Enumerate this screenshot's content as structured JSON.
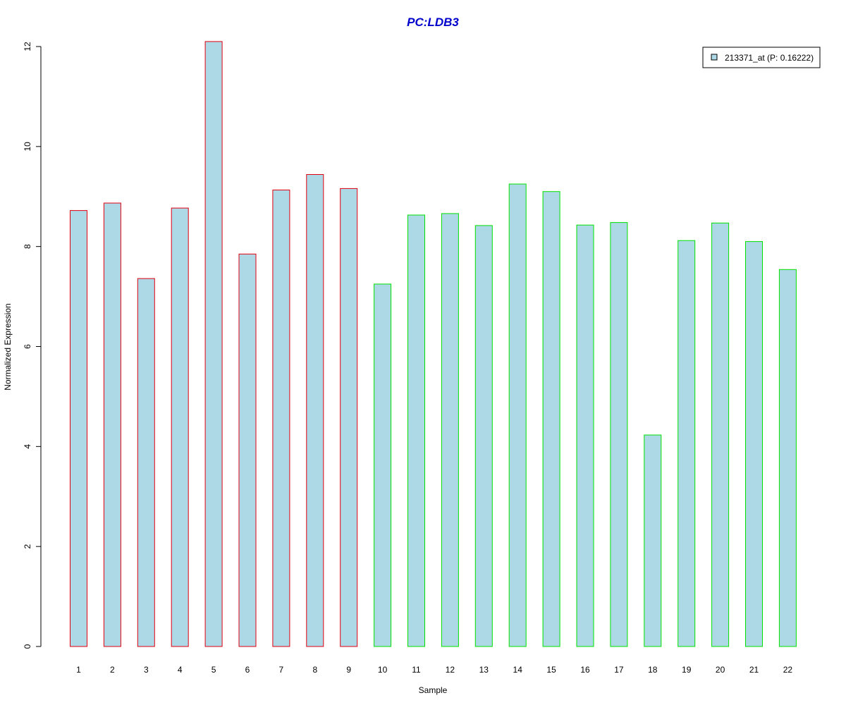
{
  "chart_data": {
    "type": "bar",
    "title": "PC:LDB3",
    "xlabel": "Sample",
    "ylabel": "Normalized Expression",
    "ylim": [
      0,
      12
    ],
    "yticks": [
      0,
      2,
      4,
      6,
      8,
      10,
      12
    ],
    "grid": false,
    "legend_position": "top-right",
    "categories": [
      "1",
      "2",
      "3",
      "4",
      "5",
      "6",
      "7",
      "8",
      "9",
      "10",
      "11",
      "12",
      "13",
      "14",
      "15",
      "16",
      "17",
      "18",
      "19",
      "20",
      "21",
      "22"
    ],
    "series": [
      {
        "name": "213371_at (P: 0.16222)",
        "values": [
          8.72,
          8.87,
          7.36,
          8.77,
          12.1,
          7.85,
          9.13,
          9.44,
          9.16,
          7.25,
          8.63,
          8.66,
          8.42,
          9.25,
          9.1,
          8.43,
          8.48,
          4.23,
          8.12,
          8.47,
          8.1,
          7.54
        ]
      }
    ],
    "group": [
      1,
      1,
      1,
      1,
      1,
      1,
      1,
      1,
      1,
      2,
      2,
      2,
      2,
      2,
      2,
      2,
      2,
      2,
      2,
      2,
      2,
      2
    ],
    "colors": {
      "title": "#0000cc",
      "bar_fill": "#add8e6",
      "group1_border": "#e0000f",
      "group2_border": "#00e000",
      "axis": "#000000"
    }
  }
}
